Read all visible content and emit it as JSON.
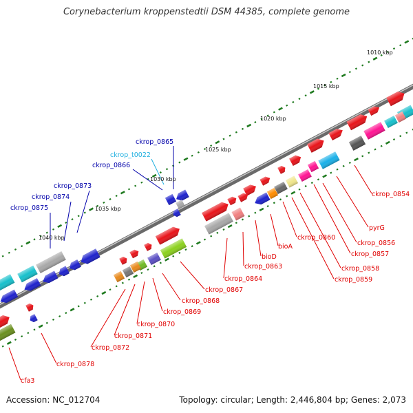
{
  "title": "Corynebacterium kroppenstedtii DSM 44385, complete genome",
  "footer": {
    "accession": "Accession: NC_012704",
    "topology": "Topology: circular; Length: 2,446,804 bp; Genes: 2,073"
  },
  "scale_labels": [
    "1010 kbp",
    "1015 kbp",
    "1020 kbp",
    "1025 kbp",
    "1030 kbp",
    "1035 kbp",
    "1040 kbp"
  ],
  "gene_labels": [
    {
      "text": "ckrop_0854",
      "color": "#e00000"
    },
    {
      "text": "pyrG",
      "color": "#e00000"
    },
    {
      "text": "ckrop_0856",
      "color": "#e00000"
    },
    {
      "text": "ckrop_0857",
      "color": "#e00000"
    },
    {
      "text": "ckrop_0858",
      "color": "#e00000"
    },
    {
      "text": "ckrop_0859",
      "color": "#e00000"
    },
    {
      "text": "ckrop_0860",
      "color": "#e00000"
    },
    {
      "text": "bioA",
      "color": "#e00000"
    },
    {
      "text": "bioD",
      "color": "#e00000"
    },
    {
      "text": "ckrop_0863",
      "color": "#e00000"
    },
    {
      "text": "ckrop_0864",
      "color": "#e00000"
    },
    {
      "text": "ckrop_0867",
      "color": "#e00000"
    },
    {
      "text": "ckrop_0868",
      "color": "#e00000"
    },
    {
      "text": "ckrop_0869",
      "color": "#e00000"
    },
    {
      "text": "ckrop_0870",
      "color": "#e00000"
    },
    {
      "text": "ckrop_0871",
      "color": "#e00000"
    },
    {
      "text": "ckrop_0872",
      "color": "#e00000"
    },
    {
      "text": "ckrop_0878",
      "color": "#e00000"
    },
    {
      "text": "cfa3",
      "color": "#e00000"
    },
    {
      "text": "ckrop_0865",
      "color": "#0000aa"
    },
    {
      "text": "ckrop_t0022",
      "color": "#20b0e0"
    },
    {
      "text": "ckrop_0866",
      "color": "#0000aa"
    },
    {
      "text": "ckrop_0873",
      "color": "#0000aa"
    },
    {
      "text": "ckrop_0874",
      "color": "#0000aa"
    },
    {
      "text": "ckrop_0875",
      "color": "#0000aa"
    }
  ]
}
